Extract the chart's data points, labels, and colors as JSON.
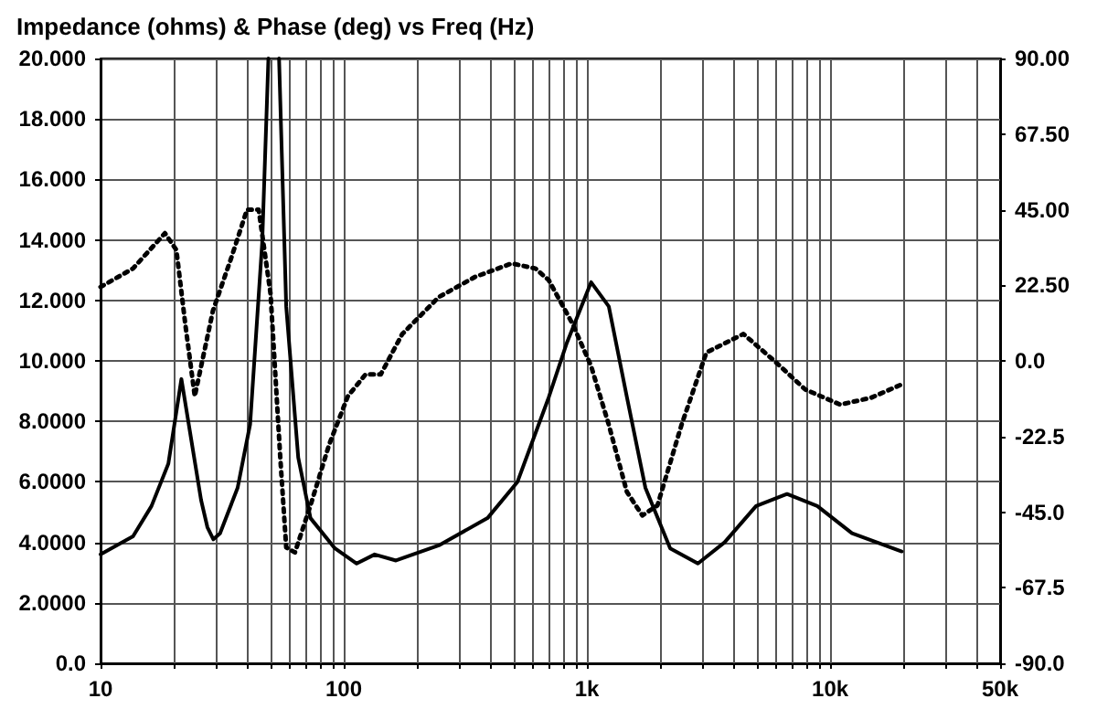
{
  "chart_data": {
    "type": "line",
    "title": "Impedance (ohms) & Phase (deg) vs Freq (Hz)",
    "log": "x",
    "grid": true,
    "marker": "none",
    "xlim": [
      10,
      50000
    ],
    "xticks": [
      {
        "value": 10,
        "label": "10"
      },
      {
        "value": 20,
        "label": null
      },
      {
        "value": 30,
        "label": null
      },
      {
        "value": 40,
        "label": null
      },
      {
        "value": 50,
        "label": null
      },
      {
        "value": 60,
        "label": null
      },
      {
        "value": 70,
        "label": null
      },
      {
        "value": 80,
        "label": null
      },
      {
        "value": 90,
        "label": null
      },
      {
        "value": 100,
        "label": "100"
      },
      {
        "value": 200,
        "label": null
      },
      {
        "value": 300,
        "label": null
      },
      {
        "value": 400,
        "label": null
      },
      {
        "value": 500,
        "label": null
      },
      {
        "value": 600,
        "label": null
      },
      {
        "value": 700,
        "label": null
      },
      {
        "value": 800,
        "label": null
      },
      {
        "value": 900,
        "label": null
      },
      {
        "value": 1000,
        "label": "1k"
      },
      {
        "value": 2000,
        "label": null
      },
      {
        "value": 3000,
        "label": null
      },
      {
        "value": 4000,
        "label": null
      },
      {
        "value": 5000,
        "label": null
      },
      {
        "value": 6000,
        "label": null
      },
      {
        "value": 7000,
        "label": null
      },
      {
        "value": 8000,
        "label": null
      },
      {
        "value": 9000,
        "label": null
      },
      {
        "value": 10000,
        "label": "10k"
      },
      {
        "value": 20000,
        "label": null
      },
      {
        "value": 30000,
        "label": null
      },
      {
        "value": 40000,
        "label": null
      },
      {
        "value": 50000,
        "label": "50k"
      }
    ],
    "ylim": [
      0,
      20
    ],
    "yticks": [
      {
        "value": 0,
        "label": "0.0"
      },
      {
        "value": 2,
        "label": "2.0000"
      },
      {
        "value": 4,
        "label": "4.0000"
      },
      {
        "value": 6,
        "label": "6.0000"
      },
      {
        "value": 8,
        "label": "8.0000"
      },
      {
        "value": 10,
        "label": "10.000"
      },
      {
        "value": 12,
        "label": "12.000"
      },
      {
        "value": 14,
        "label": "14.000"
      },
      {
        "value": 16,
        "label": "16.000"
      },
      {
        "value": 18,
        "label": "18.000"
      },
      {
        "value": 20,
        "label": "20.000"
      }
    ],
    "y2lim": [
      -90,
      90
    ],
    "y2ticks": [
      {
        "value": -90,
        "label": "-90.0"
      },
      {
        "value": -67.5,
        "label": "-67.5"
      },
      {
        "value": -45,
        "label": "-45.0"
      },
      {
        "value": -22.5,
        "label": "-22.5"
      },
      {
        "value": 0,
        "label": "0.0"
      },
      {
        "value": 22.5,
        "label": "22.50"
      },
      {
        "value": 45,
        "label": "45.00"
      },
      {
        "value": 67.5,
        "label": "67.50"
      },
      {
        "value": 90,
        "label": "90.00"
      }
    ],
    "series": [
      {
        "color": "#000000",
        "line_style": "solid",
        "x": [
          10,
          13.6,
          16.2,
          19,
          21.5,
          25.9,
          27.5,
          29.1,
          31,
          36.6,
          41.2,
          46.2,
          49,
          51.5,
          54.2,
          58,
          65,
          73,
          92,
          113,
          134,
          164,
          246,
          390,
          518,
          697,
          827,
          1040,
          1230,
          1460,
          1740,
          2200,
          2860,
          3680,
          4960,
          6650,
          8860,
          12300,
          19700
        ],
        "values": [
          3.6,
          4.2,
          5.2,
          6.6,
          9.4,
          5.4,
          4.5,
          4.1,
          4.3,
          5.8,
          7.9,
          13.9,
          20,
          null,
          20,
          11.8,
          6.8,
          4.8,
          3.8,
          3.3,
          3.6,
          3.4,
          3.9,
          4.8,
          6,
          8.8,
          10.6,
          12.6,
          11.8,
          8.8,
          5.8,
          3.8,
          3.3,
          4,
          5.2,
          5.6,
          5.2,
          4.3,
          3.7
        ]
      },
      {
        "color": "#000000",
        "line_style": "dotted",
        "axis": "y2",
        "x": [
          10,
          13.6,
          18.4,
          20.5,
          22.3,
          24.4,
          29,
          34.6,
          40,
          44.7,
          50,
          54.8,
          58,
          63,
          73,
          87,
          104,
          123,
          142,
          174,
          246,
          347,
          490,
          614,
          697,
          873,
          1040,
          1230,
          1460,
          1690,
          1950,
          2450,
          3100,
          4400,
          5900,
          7900,
          11000,
          14700,
          19700
        ],
        "values": [
          22,
          27.5,
          38,
          33,
          11,
          -10.5,
          15,
          31,
          45,
          45,
          20,
          -28.5,
          -55.5,
          -57,
          -43,
          -25,
          -10.5,
          -4,
          -4,
          8,
          19,
          25,
          29,
          27.5,
          24,
          11,
          -1.5,
          -19,
          -39,
          -46,
          -43,
          -19,
          2.5,
          8,
          0,
          -8.5,
          -13,
          -11,
          -7
        ]
      }
    ]
  }
}
